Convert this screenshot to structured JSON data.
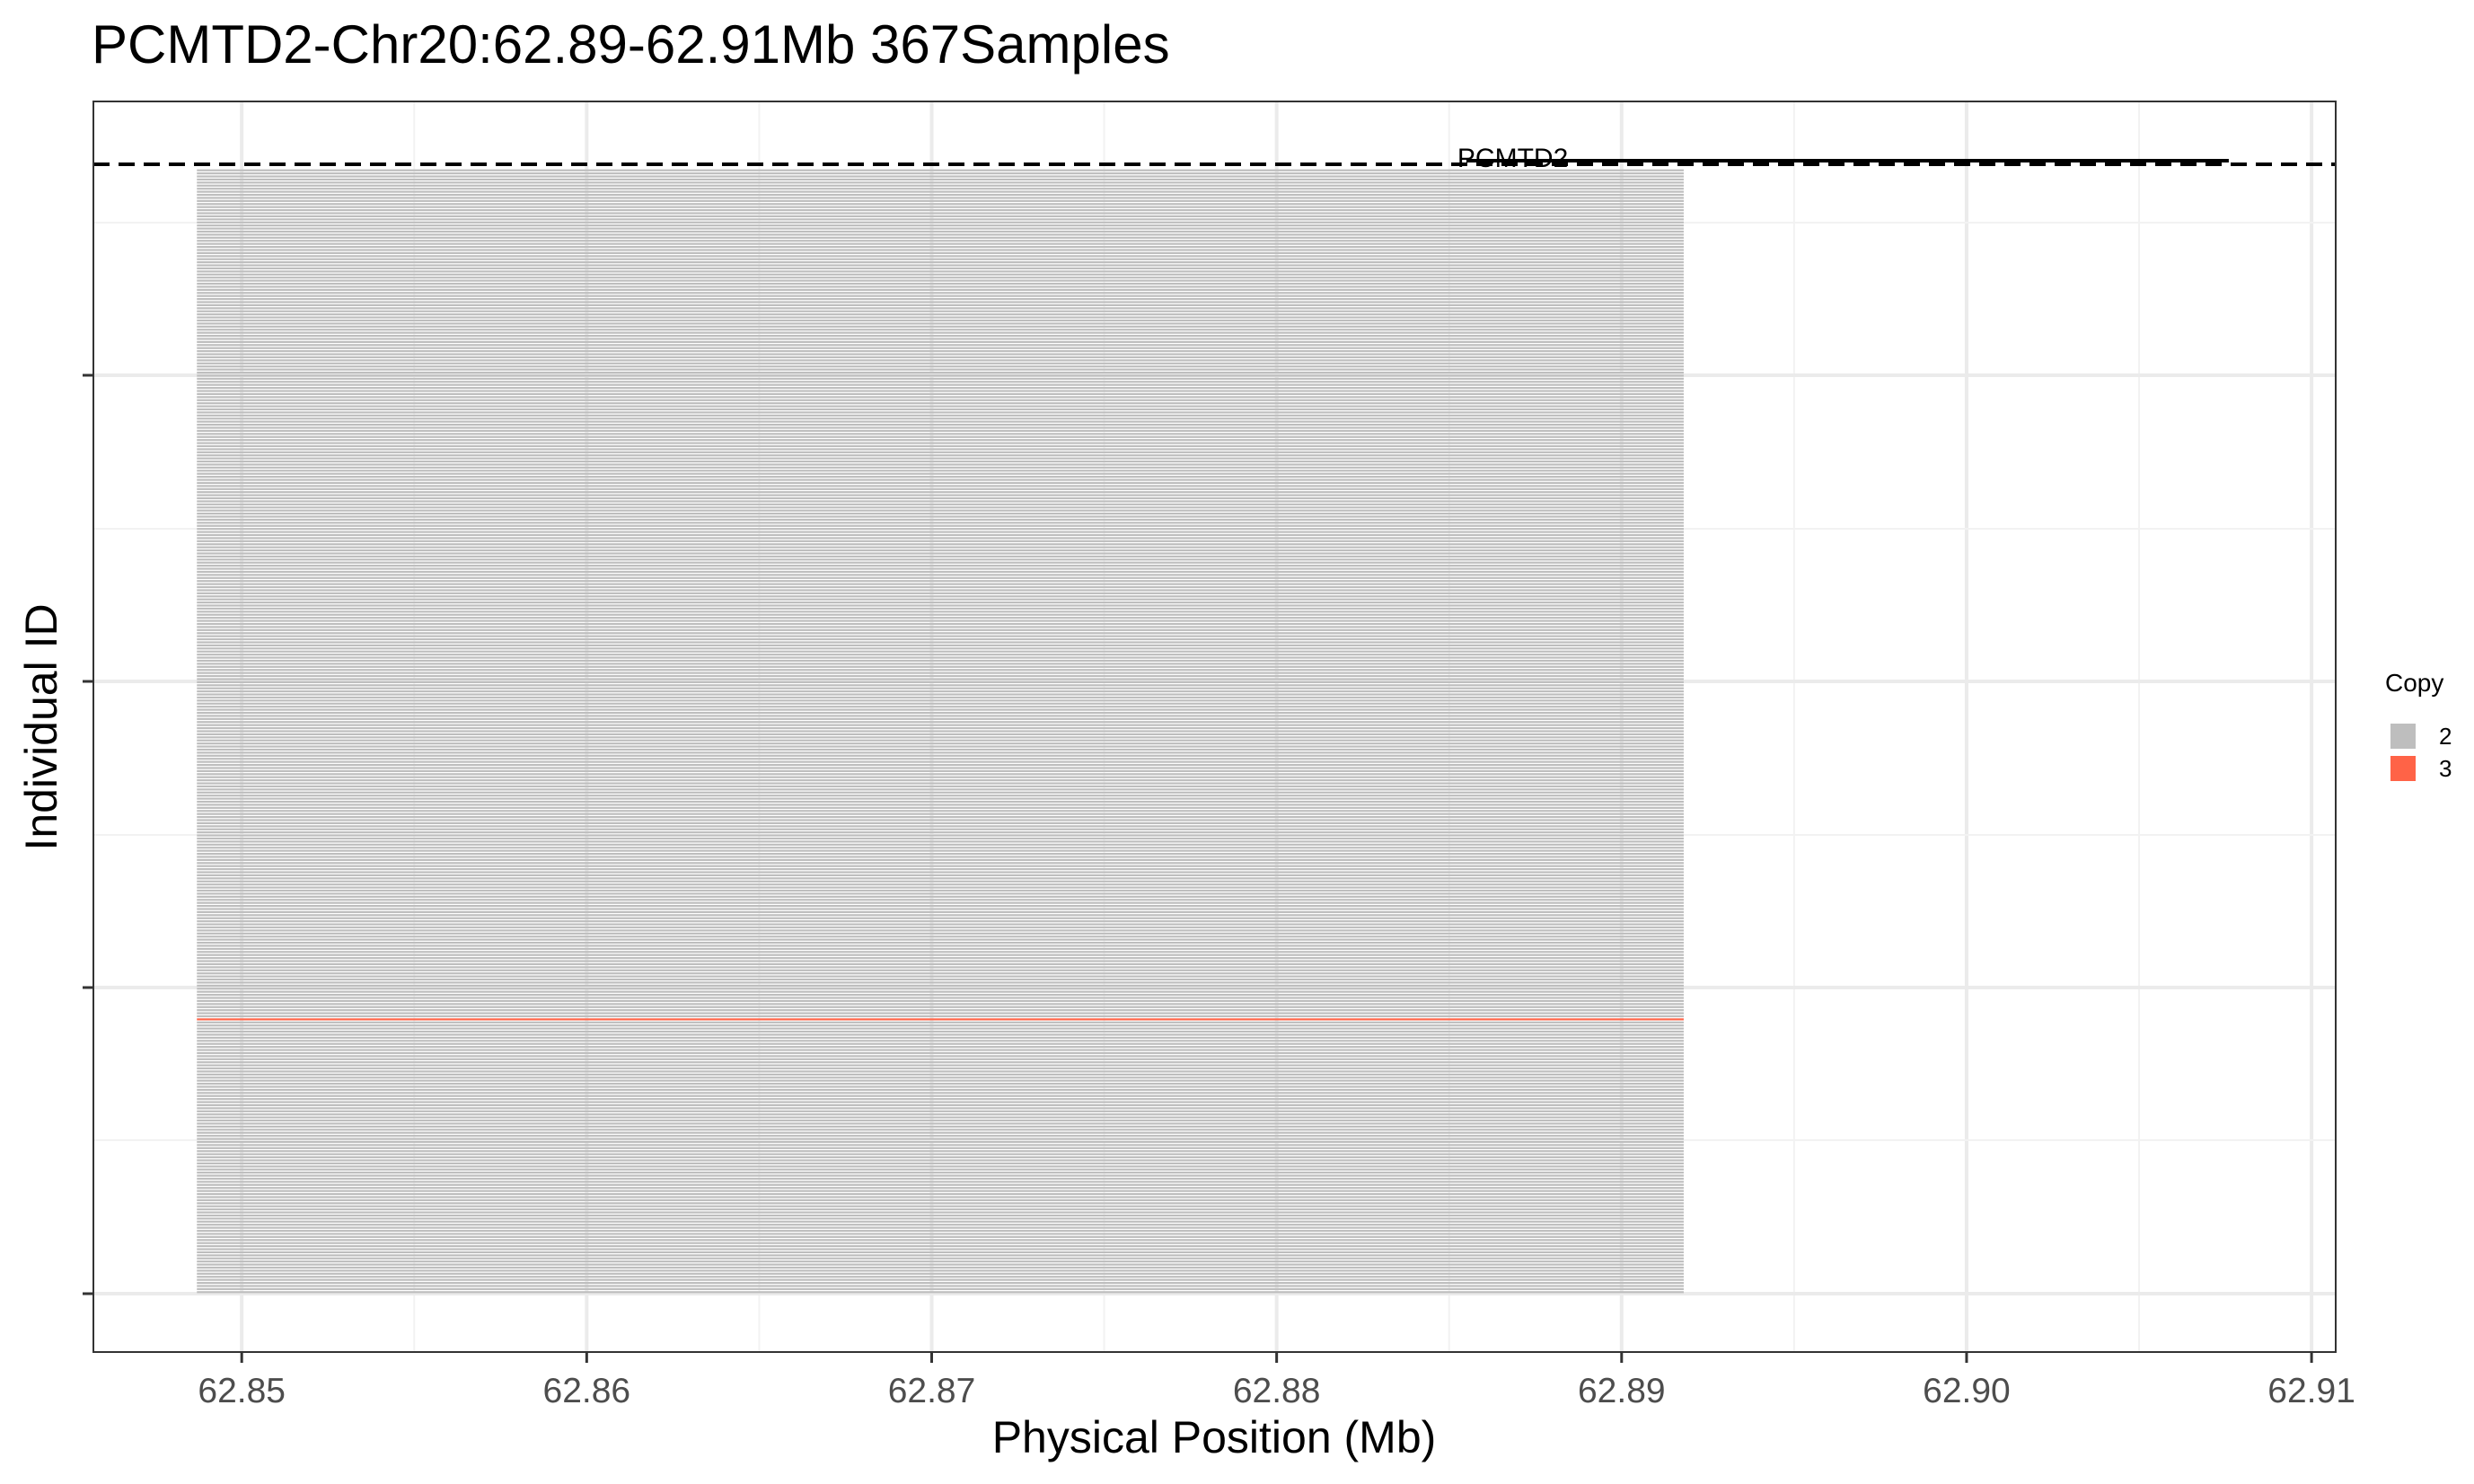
{
  "chart_data": {
    "type": "heatmap",
    "title": "PCMTD2-Chr20:62.89-62.91Mb 367Samples",
    "xlabel": "Physical Position (Mb)",
    "ylabel": "Individual ID",
    "xlim": [
      62.8457,
      62.9107
    ],
    "x_ticks": [
      62.85,
      62.86,
      62.87,
      62.88,
      62.89,
      62.9,
      62.91
    ],
    "x_tick_labels": [
      "62.85",
      "62.86",
      "62.87",
      "62.88",
      "62.89",
      "62.90",
      "62.91"
    ],
    "y_ticks": [
      0,
      1,
      2,
      3
    ],
    "grid": true,
    "samples": 367,
    "segments": {
      "x_start": 62.8487,
      "x_end": 62.8918,
      "copy_number": 2,
      "exceptions": [
        {
          "sample_index": 89,
          "copy_number": 3
        }
      ]
    },
    "gene": {
      "name": "PCMTD2",
      "start": 62.8855,
      "end": 62.9076
    },
    "legend": {
      "title": "Copy",
      "placement": "right",
      "items": [
        {
          "label": "2",
          "color": "#bebebe"
        },
        {
          "label": "3",
          "color": "#ff6347"
        }
      ]
    }
  }
}
